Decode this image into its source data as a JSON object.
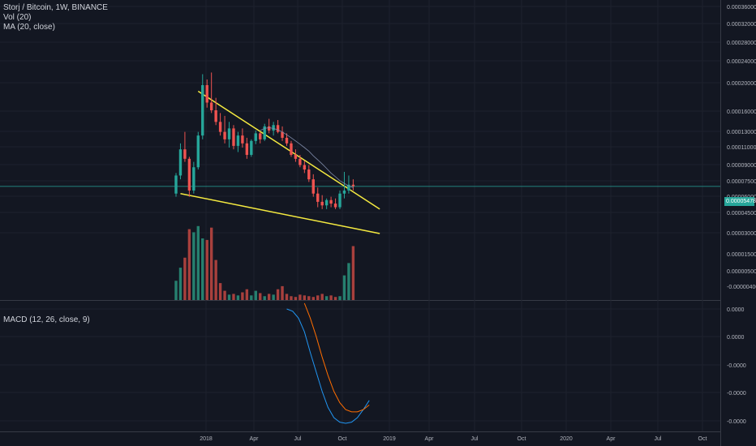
{
  "header": {
    "title": "Storj / Bitcoin, 1W, BINANCE",
    "volume_label": "Vol (20)",
    "ma_label": "MA (20, close)",
    "macd_label": "MACD (12, 26, close, 9)"
  },
  "last_price": "0.00005478",
  "colors": {
    "background": "#131722",
    "grid": "#1e222d",
    "up": "#26a69a",
    "down": "#ef5350",
    "volume_up": "#26806f",
    "volume_down": "#a8403d",
    "trendline": "#f5ea40",
    "macd_line": "#2196f3",
    "signal_line": "#ff6d00",
    "price_line": "#26a69a"
  },
  "chart_data": {
    "type": "candlestick",
    "symbol": "Storj / Bitcoin",
    "interval": "1W",
    "exchange": "BINANCE",
    "x_tick_labels": [
      "2018",
      "Apr",
      "Jul",
      "Oct",
      "2019",
      "Apr",
      "Jul",
      "Oct",
      "2020",
      "Apr",
      "Jul",
      "Oct"
    ],
    "price_axis_labels": [
      "0.00036000",
      "0.00032000",
      "0.00028000",
      "0.00024000",
      "0.00020000",
      "0.00016000",
      "0.00013000",
      "0.00011000",
      "0.00009000",
      "0.00007500",
      "0.00006000",
      "0.00004500",
      "0.00003000"
    ],
    "volume_axis_labels": [
      "0.00001500",
      "0.00000500",
      "-0.00000400"
    ],
    "macd_axis_labels": [
      "0.0000",
      "0.0000",
      "-0.0000",
      "-0.0000",
      "-0.0000"
    ],
    "candles": [
      {
        "o": 5e-05,
        "h": 6.5e-05,
        "l": 4.8e-05,
        "c": 6.3e-05
      },
      {
        "o": 6.3e-05,
        "h": 9.5e-05,
        "l": 6e-05,
        "c": 8.8e-05
      },
      {
        "o": 8.8e-05,
        "h": 0.00011,
        "l": 7.5e-05,
        "c": 7.8e-05
      },
      {
        "o": 7.8e-05,
        "h": 8e-05,
        "l": 4.8e-05,
        "c": 5.2e-05
      },
      {
        "o": 5.2e-05,
        "h": 7.5e-05,
        "l": 5e-05,
        "c": 7e-05
      },
      {
        "o": 7e-05,
        "h": 0.00011,
        "l": 6.8e-05,
        "c": 0.000105
      },
      {
        "o": 0.000105,
        "h": 0.00023,
        "l": 0.0001,
        "c": 0.0002
      },
      {
        "o": 0.0002,
        "h": 0.000215,
        "l": 0.00015,
        "c": 0.00016
      },
      {
        "o": 0.00016,
        "h": 0.000235,
        "l": 0.00014,
        "c": 0.000145
      },
      {
        "o": 0.000145,
        "h": 0.00017,
        "l": 0.00012,
        "c": 0.000125
      },
      {
        "o": 0.000125,
        "h": 0.00014,
        "l": 0.000105,
        "c": 0.00011
      },
      {
        "o": 0.00011,
        "h": 0.000135,
        "l": 9.5e-05,
        "c": 0.0001
      },
      {
        "o": 0.0001,
        "h": 0.000125,
        "l": 9e-05,
        "c": 0.000115
      },
      {
        "o": 0.000115,
        "h": 0.00012,
        "l": 8.8e-05,
        "c": 9.2e-05
      },
      {
        "o": 9.2e-05,
        "h": 0.00011,
        "l": 8.5e-05,
        "c": 0.000105
      },
      {
        "o": 0.000105,
        "h": 0.000115,
        "l": 9e-05,
        "c": 9.5e-05
      },
      {
        "o": 9.5e-05,
        "h": 0.000102,
        "l": 7.8e-05,
        "c": 8.2e-05
      },
      {
        "o": 8.2e-05,
        "h": 0.0001,
        "l": 8e-05,
        "c": 9.8e-05
      },
      {
        "o": 9.8e-05,
        "h": 0.000112,
        "l": 9.4e-05,
        "c": 0.000108
      },
      {
        "o": 0.000108,
        "h": 0.00011,
        "l": 9.5e-05,
        "c": 0.0001
      },
      {
        "o": 0.0001,
        "h": 0.000122,
        "l": 9.8e-05,
        "c": 0.000118
      },
      {
        "o": 0.000118,
        "h": 0.00013,
        "l": 0.000108,
        "c": 0.000112
      },
      {
        "o": 0.000112,
        "h": 0.000125,
        "l": 0.000105,
        "c": 0.00012
      },
      {
        "o": 0.00012,
        "h": 0.000128,
        "l": 0.000108,
        "c": 0.00011
      },
      {
        "o": 0.00011,
        "h": 0.000118,
        "l": 9.8e-05,
        "c": 0.000102
      },
      {
        "o": 0.000102,
        "h": 0.000108,
        "l": 9.2e-05,
        "c": 9.5e-05
      },
      {
        "o": 9.5e-05,
        "h": 9.8e-05,
        "l": 8e-05,
        "c": 8.2e-05
      },
      {
        "o": 8.2e-05,
        "h": 8.8e-05,
        "l": 7.5e-05,
        "c": 7.8e-05
      },
      {
        "o": 7.8e-05,
        "h": 8.2e-05,
        "l": 7e-05,
        "c": 7.2e-05
      },
      {
        "o": 7.2e-05,
        "h": 7.6e-05,
        "l": 6.5e-05,
        "c": 6.8e-05
      },
      {
        "o": 6.8e-05,
        "h": 7.2e-05,
        "l": 5.8e-05,
        "c": 6e-05
      },
      {
        "o": 6e-05,
        "h": 6.4e-05,
        "l": 4.8e-05,
        "c": 5e-05
      },
      {
        "o": 5e-05,
        "h": 5.4e-05,
        "l": 4.2e-05,
        "c": 4.5e-05
      },
      {
        "o": 4.5e-05,
        "h": 4.9e-05,
        "l": 4.1e-05,
        "c": 4.3e-05
      },
      {
        "o": 4.3e-05,
        "h": 4.7e-05,
        "l": 4.1e-05,
        "c": 4.6e-05
      },
      {
        "o": 4.6e-05,
        "h": 4.8e-05,
        "l": 4.2e-05,
        "c": 4.4e-05
      },
      {
        "o": 4.4e-05,
        "h": 4.7e-05,
        "l": 4.1e-05,
        "c": 4.2e-05
      },
      {
        "o": 4.2e-05,
        "h": 5.2e-05,
        "l": 4.1e-05,
        "c": 5e-05
      },
      {
        "o": 5e-05,
        "h": 6.6e-05,
        "l": 4.7e-05,
        "c": 5.2e-05
      },
      {
        "o": 5.2e-05,
        "h": 6.3e-05,
        "l": 5e-05,
        "c": 5.6e-05
      },
      {
        "o": 5.6e-05,
        "h": 6e-05,
        "l": 5.2e-05,
        "c": 5.5e-05
      }
    ],
    "volumes": [
      0.25,
      0.42,
      0.55,
      0.92,
      0.88,
      0.96,
      0.8,
      0.78,
      0.94,
      0.52,
      0.22,
      0.12,
      0.07,
      0.08,
      0.06,
      0.1,
      0.14,
      0.06,
      0.12,
      0.09,
      0.05,
      0.08,
      0.07,
      0.14,
      0.18,
      0.08,
      0.05,
      0.04,
      0.07,
      0.06,
      0.05,
      0.04,
      0.06,
      0.08,
      0.05,
      0.06,
      0.04,
      0.05,
      0.32,
      0.48,
      0.7
    ],
    "ma20": [
      null,
      null,
      null,
      null,
      null,
      null,
      null,
      null,
      null,
      null,
      null,
      null,
      null,
      null,
      null,
      null,
      null,
      null,
      null,
      0.000112,
      0.000115,
      0.000116,
      0.000115,
      0.000113,
      0.00011,
      0.000106,
      0.000102,
      9.8e-05,
      9.4e-05,
      9e-05,
      8.6e-05,
      8.1e-05,
      7.7e-05,
      7.3e-05,
      6.9e-05,
      6.5e-05,
      6.2e-05,
      5.9e-05,
      5.7e-05,
      5.5e-05,
      5.4e-05
    ],
    "trendlines": [
      {
        "name": "upper",
        "from": {
          "bar": 5,
          "price": 0.000185
        },
        "to": {
          "bar": 46,
          "price": 4.1e-05
        }
      },
      {
        "name": "lower",
        "from": {
          "bar": 1,
          "price": 5e-05
        },
        "to": {
          "bar": 46,
          "price": 3e-05
        }
      }
    ],
    "macd": {
      "macd_line": [
        0.0,
        -0.02,
        -0.08,
        -0.2,
        -0.38,
        -0.55,
        -0.72,
        -0.86,
        -0.95,
        -0.99,
        -1.0,
        -0.99,
        -0.95,
        -0.88,
        -0.8
      ],
      "signal_line": [
        null,
        null,
        null,
        0.05,
        -0.08,
        -0.24,
        -0.42,
        -0.58,
        -0.72,
        -0.82,
        -0.88,
        -0.9,
        -0.9,
        -0.88,
        -0.84
      ],
      "start_bar": 25
    }
  }
}
